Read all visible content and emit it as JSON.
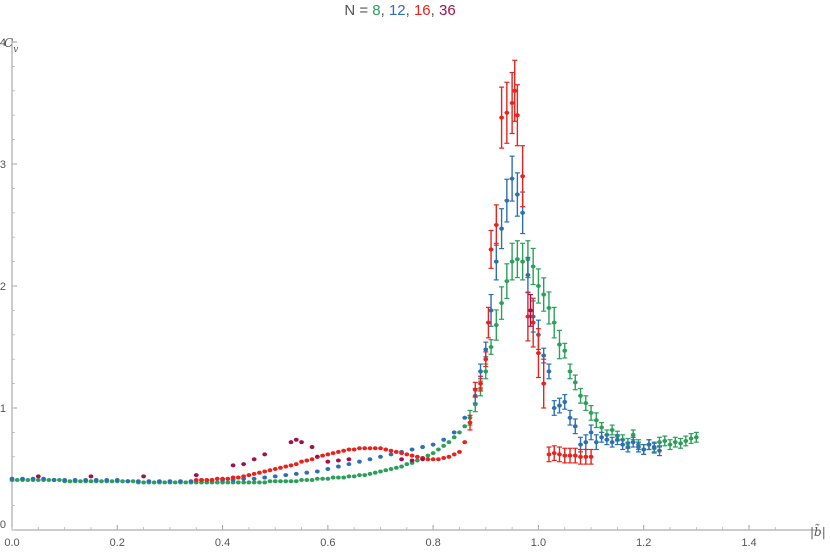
{
  "chart_data": {
    "type": "scatter",
    "title_parts": [
      {
        "text": "N = ",
        "color": "#555555"
      },
      {
        "text": "8",
        "color": "#2ca05a"
      },
      {
        "text": ", ",
        "color": "#555555"
      },
      {
        "text": "12",
        "color": "#2e6fb3"
      },
      {
        "text": ", ",
        "color": "#555555"
      },
      {
        "text": "16",
        "color": "#e8221c"
      },
      {
        "text": ", ",
        "color": "#555555"
      },
      {
        "text": "36",
        "color": "#a3114c"
      }
    ],
    "ylabel": "C_v",
    "xlabel": "|b̃|",
    "xlim": [
      0,
      1.5
    ],
    "ylim": [
      0,
      4
    ],
    "xticks": [
      0.0,
      0.2,
      0.4,
      0.6,
      0.8,
      1.0,
      1.2,
      1.4
    ],
    "xtick_labels": [
      "0.0",
      "0.2",
      "0.4",
      "0.6",
      "0.8",
      "1.0",
      "1.2",
      "1.4"
    ],
    "yticks": [
      0,
      1,
      2,
      3,
      4
    ],
    "ytick_labels": [
      "0",
      "1",
      "2",
      "3",
      "4"
    ],
    "series": [
      {
        "legend": "8",
        "color": "#2ca05a",
        "points": [
          [
            0.0,
            0.41
          ],
          [
            0.01,
            0.41
          ],
          [
            0.02,
            0.41
          ],
          [
            0.03,
            0.41
          ],
          [
            0.04,
            0.41
          ],
          [
            0.05,
            0.41
          ],
          [
            0.06,
            0.41
          ],
          [
            0.07,
            0.41
          ],
          [
            0.08,
            0.41
          ],
          [
            0.09,
            0.41
          ],
          [
            0.1,
            0.4
          ],
          [
            0.11,
            0.4
          ],
          [
            0.12,
            0.4
          ],
          [
            0.13,
            0.4
          ],
          [
            0.14,
            0.4
          ],
          [
            0.15,
            0.4
          ],
          [
            0.16,
            0.4
          ],
          [
            0.17,
            0.4
          ],
          [
            0.18,
            0.4
          ],
          [
            0.19,
            0.4
          ],
          [
            0.2,
            0.4
          ],
          [
            0.21,
            0.4
          ],
          [
            0.22,
            0.4
          ],
          [
            0.23,
            0.4
          ],
          [
            0.24,
            0.39
          ],
          [
            0.25,
            0.39
          ],
          [
            0.26,
            0.39
          ],
          [
            0.27,
            0.39
          ],
          [
            0.28,
            0.39
          ],
          [
            0.29,
            0.39
          ],
          [
            0.3,
            0.39
          ],
          [
            0.31,
            0.39
          ],
          [
            0.32,
            0.39
          ],
          [
            0.33,
            0.39
          ],
          [
            0.34,
            0.39
          ],
          [
            0.35,
            0.39
          ],
          [
            0.36,
            0.39
          ],
          [
            0.37,
            0.39
          ],
          [
            0.38,
            0.39
          ],
          [
            0.39,
            0.39
          ],
          [
            0.4,
            0.39
          ],
          [
            0.41,
            0.39
          ],
          [
            0.42,
            0.39
          ],
          [
            0.43,
            0.39
          ],
          [
            0.44,
            0.39
          ],
          [
            0.45,
            0.39
          ],
          [
            0.46,
            0.39
          ],
          [
            0.47,
            0.39
          ],
          [
            0.48,
            0.39
          ],
          [
            0.49,
            0.4
          ],
          [
            0.5,
            0.4
          ],
          [
            0.51,
            0.4
          ],
          [
            0.52,
            0.4
          ],
          [
            0.53,
            0.4
          ],
          [
            0.54,
            0.4
          ],
          [
            0.55,
            0.41
          ],
          [
            0.56,
            0.41
          ],
          [
            0.57,
            0.41
          ],
          [
            0.58,
            0.42
          ],
          [
            0.59,
            0.42
          ],
          [
            0.6,
            0.42
          ],
          [
            0.61,
            0.43
          ],
          [
            0.62,
            0.43
          ],
          [
            0.63,
            0.43
          ],
          [
            0.64,
            0.44
          ],
          [
            0.65,
            0.44
          ],
          [
            0.66,
            0.45
          ],
          [
            0.67,
            0.45
          ],
          [
            0.68,
            0.46
          ],
          [
            0.69,
            0.47
          ],
          [
            0.7,
            0.48
          ],
          [
            0.71,
            0.49
          ],
          [
            0.72,
            0.5
          ],
          [
            0.73,
            0.51
          ],
          [
            0.74,
            0.52
          ],
          [
            0.75,
            0.54
          ],
          [
            0.76,
            0.55
          ],
          [
            0.77,
            0.57
          ],
          [
            0.78,
            0.59
          ],
          [
            0.79,
            0.61
          ],
          [
            0.8,
            0.63
          ],
          [
            0.81,
            0.66
          ],
          [
            0.82,
            0.69
          ],
          [
            0.83,
            0.72
          ],
          [
            0.84,
            0.76
          ],
          [
            0.85,
            0.8
          ],
          [
            0.86,
            0.85
          ],
          [
            0.87,
            0.92
          ],
          [
            0.88,
            1.03
          ],
          [
            0.89,
            1.16
          ],
          [
            0.9,
            1.3
          ],
          [
            0.91,
            1.5
          ],
          [
            0.92,
            1.68
          ],
          [
            0.93,
            1.86
          ],
          [
            0.94,
            2.04
          ],
          [
            0.95,
            2.2
          ],
          [
            0.96,
            2.22
          ],
          [
            0.97,
            2.2
          ],
          [
            0.98,
            2.22
          ],
          [
            0.99,
            2.16
          ],
          [
            1.0,
            2.0
          ],
          [
            1.01,
            1.93
          ],
          [
            1.02,
            1.82
          ],
          [
            1.03,
            1.7
          ],
          [
            1.04,
            1.52
          ],
          [
            1.05,
            1.47
          ],
          [
            1.06,
            1.3
          ],
          [
            1.07,
            1.21
          ],
          [
            1.08,
            1.1
          ],
          [
            1.09,
            1.04
          ],
          [
            1.1,
            0.96
          ],
          [
            1.11,
            0.9
          ],
          [
            1.12,
            0.84
          ],
          [
            1.13,
            0.78
          ],
          [
            1.14,
            0.82
          ],
          [
            1.15,
            0.77
          ],
          [
            1.16,
            0.74
          ],
          [
            1.17,
            0.71
          ],
          [
            1.18,
            0.78
          ],
          [
            1.19,
            0.7
          ],
          [
            1.2,
            0.66
          ],
          [
            1.21,
            0.7
          ],
          [
            1.22,
            0.67
          ],
          [
            1.23,
            0.72
          ],
          [
            1.24,
            0.73
          ],
          [
            1.25,
            0.7
          ],
          [
            1.26,
            0.72
          ],
          [
            1.27,
            0.71
          ],
          [
            1.28,
            0.73
          ],
          [
            1.29,
            0.75
          ],
          [
            1.3,
            0.76
          ]
        ]
      },
      {
        "legend": "12",
        "color": "#2e6fb3",
        "points": [
          [
            0.0,
            0.42
          ],
          [
            0.02,
            0.42
          ],
          [
            0.04,
            0.42
          ],
          [
            0.06,
            0.42
          ],
          [
            0.08,
            0.41
          ],
          [
            0.1,
            0.41
          ],
          [
            0.12,
            0.41
          ],
          [
            0.14,
            0.41
          ],
          [
            0.16,
            0.41
          ],
          [
            0.18,
            0.41
          ],
          [
            0.2,
            0.41
          ],
          [
            0.22,
            0.4
          ],
          [
            0.24,
            0.4
          ],
          [
            0.26,
            0.4
          ],
          [
            0.28,
            0.4
          ],
          [
            0.3,
            0.4
          ],
          [
            0.32,
            0.4
          ],
          [
            0.34,
            0.4
          ],
          [
            0.36,
            0.41
          ],
          [
            0.38,
            0.41
          ],
          [
            0.4,
            0.41
          ],
          [
            0.42,
            0.41
          ],
          [
            0.44,
            0.42
          ],
          [
            0.46,
            0.42
          ],
          [
            0.48,
            0.43
          ],
          [
            0.5,
            0.44
          ],
          [
            0.52,
            0.45
          ],
          [
            0.54,
            0.46
          ],
          [
            0.56,
            0.47
          ],
          [
            0.58,
            0.48
          ],
          [
            0.6,
            0.5
          ],
          [
            0.62,
            0.52
          ],
          [
            0.64,
            0.54
          ],
          [
            0.66,
            0.56
          ],
          [
            0.68,
            0.58
          ],
          [
            0.7,
            0.6
          ],
          [
            0.72,
            0.62
          ],
          [
            0.74,
            0.64
          ],
          [
            0.76,
            0.66
          ],
          [
            0.78,
            0.68
          ],
          [
            0.8,
            0.7
          ],
          [
            0.82,
            0.74
          ],
          [
            0.84,
            0.8
          ],
          [
            0.86,
            0.92
          ],
          [
            0.88,
            1.1
          ],
          [
            0.89,
            1.3
          ],
          [
            0.9,
            1.48
          ],
          [
            0.91,
            1.8
          ],
          [
            0.92,
            2.2
          ],
          [
            0.93,
            2.47
          ],
          [
            0.94,
            2.7
          ],
          [
            0.95,
            2.88
          ],
          [
            0.96,
            2.75
          ],
          [
            0.97,
            2.6
          ],
          [
            0.98,
            2.09
          ],
          [
            0.99,
            1.75
          ],
          [
            1.0,
            1.6
          ],
          [
            1.01,
            1.43
          ],
          [
            1.02,
            1.3
          ],
          [
            1.03,
            1.0
          ],
          [
            1.04,
            1.02
          ],
          [
            1.05,
            1.05
          ],
          [
            1.06,
            0.92
          ],
          [
            1.07,
            0.85
          ],
          [
            1.08,
            0.7
          ],
          [
            1.09,
            0.72
          ],
          [
            1.1,
            0.8
          ],
          [
            1.11,
            0.72
          ],
          [
            1.12,
            0.76
          ],
          [
            1.13,
            0.74
          ],
          [
            1.14,
            0.72
          ],
          [
            1.15,
            0.74
          ],
          [
            1.16,
            0.7
          ],
          [
            1.17,
            0.68
          ],
          [
            1.18,
            0.72
          ],
          [
            1.19,
            0.68
          ],
          [
            1.2,
            0.66
          ],
          [
            1.21,
            0.7
          ],
          [
            1.22,
            0.68
          ],
          [
            1.23,
            0.65
          ]
        ]
      },
      {
        "legend": "16",
        "color": "#e8221c",
        "points": [
          [
            0.35,
            0.41
          ],
          [
            0.36,
            0.41
          ],
          [
            0.37,
            0.41
          ],
          [
            0.38,
            0.41
          ],
          [
            0.39,
            0.42
          ],
          [
            0.4,
            0.42
          ],
          [
            0.41,
            0.42
          ],
          [
            0.42,
            0.43
          ],
          [
            0.43,
            0.43
          ],
          [
            0.44,
            0.44
          ],
          [
            0.45,
            0.45
          ],
          [
            0.46,
            0.46
          ],
          [
            0.47,
            0.47
          ],
          [
            0.48,
            0.48
          ],
          [
            0.49,
            0.49
          ],
          [
            0.5,
            0.5
          ],
          [
            0.51,
            0.51
          ],
          [
            0.52,
            0.52
          ],
          [
            0.53,
            0.53
          ],
          [
            0.54,
            0.54
          ],
          [
            0.55,
            0.56
          ],
          [
            0.56,
            0.57
          ],
          [
            0.57,
            0.58
          ],
          [
            0.58,
            0.6
          ],
          [
            0.59,
            0.61
          ],
          [
            0.6,
            0.62
          ],
          [
            0.61,
            0.63
          ],
          [
            0.62,
            0.64
          ],
          [
            0.63,
            0.65
          ],
          [
            0.64,
            0.66
          ],
          [
            0.65,
            0.66
          ],
          [
            0.66,
            0.67
          ],
          [
            0.67,
            0.67
          ],
          [
            0.68,
            0.67
          ],
          [
            0.69,
            0.67
          ],
          [
            0.7,
            0.67
          ],
          [
            0.71,
            0.66
          ],
          [
            0.72,
            0.65
          ],
          [
            0.73,
            0.64
          ],
          [
            0.74,
            0.63
          ],
          [
            0.75,
            0.62
          ],
          [
            0.76,
            0.61
          ],
          [
            0.77,
            0.6
          ],
          [
            0.78,
            0.59
          ],
          [
            0.79,
            0.58
          ],
          [
            0.8,
            0.58
          ],
          [
            0.81,
            0.58
          ],
          [
            0.82,
            0.59
          ],
          [
            0.83,
            0.6
          ],
          [
            0.84,
            0.62
          ],
          [
            0.85,
            0.64
          ],
          [
            0.86,
            0.72
          ],
          [
            0.87,
            0.88
          ],
          [
            0.88,
            1.15
          ],
          [
            0.89,
            1.2
          ],
          [
            0.9,
            1.4
          ],
          [
            0.905,
            1.7
          ],
          [
            0.91,
            2.3
          ],
          [
            0.92,
            2.5
          ],
          [
            0.93,
            3.38
          ],
          [
            0.94,
            3.42
          ],
          [
            0.95,
            3.5
          ],
          [
            0.955,
            3.6
          ],
          [
            0.96,
            3.4
          ],
          [
            0.97,
            2.9
          ],
          [
            0.98,
            1.75
          ],
          [
            0.99,
            1.7
          ],
          [
            1.0,
            1.45
          ],
          [
            1.01,
            1.2
          ],
          [
            1.02,
            0.62
          ],
          [
            1.03,
            0.63
          ],
          [
            1.04,
            0.62
          ],
          [
            1.05,
            0.61
          ],
          [
            1.06,
            0.61
          ],
          [
            1.07,
            0.61
          ],
          [
            1.08,
            0.6
          ],
          [
            1.09,
            0.6
          ],
          [
            1.1,
            0.6
          ]
        ]
      },
      {
        "legend": "36",
        "color": "#a3114c",
        "points": [
          [
            0.05,
            0.44
          ],
          [
            0.15,
            0.44
          ],
          [
            0.25,
            0.44
          ],
          [
            0.35,
            0.45
          ],
          [
            0.42,
            0.53
          ],
          [
            0.44,
            0.54
          ],
          [
            0.46,
            0.58
          ],
          [
            0.48,
            0.62
          ],
          [
            0.53,
            0.72
          ],
          [
            0.54,
            0.74
          ],
          [
            0.55,
            0.72
          ],
          [
            0.57,
            0.68
          ],
          [
            0.58,
            0.6
          ],
          [
            0.6,
            0.56
          ],
          [
            0.62,
            0.57
          ],
          [
            0.64,
            0.58
          ],
          [
            0.74,
            0.58
          ],
          [
            0.76,
            0.57
          ],
          [
            0.78,
            0.58
          ],
          [
            0.985,
            1.8
          ]
        ]
      }
    ]
  }
}
